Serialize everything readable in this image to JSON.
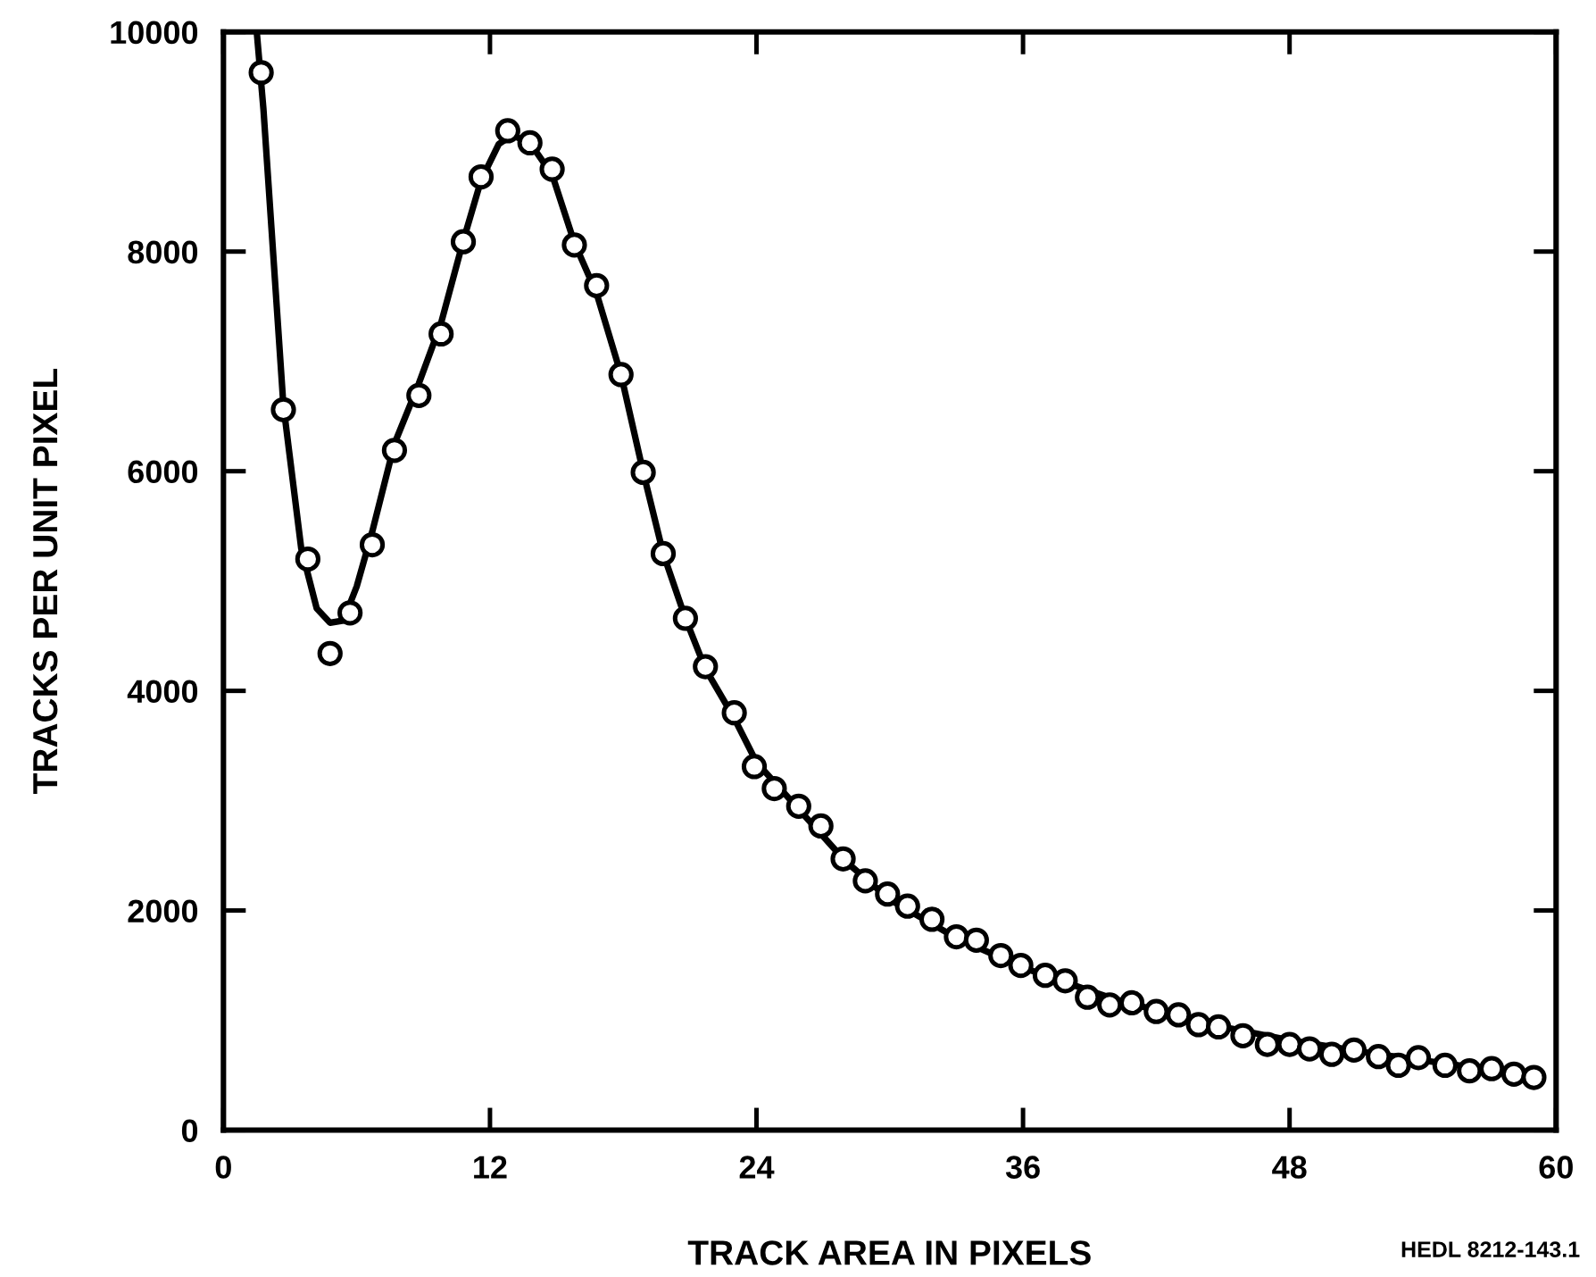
{
  "chart_data": {
    "type": "scatter",
    "xlabel": "TRACK AREA IN PIXELS",
    "ylabel": "TRACKS PER UNIT PIXEL",
    "annotations": [
      "HEDL 8212-143.1"
    ],
    "xlim": [
      0,
      60
    ],
    "ylim": [
      0,
      10000
    ],
    "xticks": [
      0,
      12,
      24,
      36,
      48,
      60
    ],
    "yticks": [
      0,
      2000,
      4000,
      6000,
      8000,
      10000
    ],
    "grid": false,
    "legend": false,
    "series": [
      {
        "color": "#000000",
        "marker": "circle",
        "x": [
          1.7,
          2.7,
          3.8,
          4.8,
          5.7,
          6.7,
          7.7,
          8.8,
          9.8,
          10.8,
          11.6,
          12.8,
          13.8,
          14.8,
          15.8,
          16.8,
          17.9,
          18.9,
          19.8,
          20.8,
          21.7,
          23.0,
          23.9,
          24.8,
          25.9,
          26.9,
          27.9,
          28.9,
          29.9,
          30.8,
          31.9,
          33.0,
          33.9,
          35.0,
          35.9,
          37.0,
          37.9,
          38.9,
          39.9,
          40.9,
          42.0,
          43.0,
          43.9,
          44.8,
          45.9,
          47.0,
          48.0,
          48.9,
          49.9,
          50.9,
          52.0,
          52.9,
          53.8,
          55.0,
          56.1,
          57.1,
          58.1,
          59.0
        ],
        "values": [
          9630,
          6560,
          5200,
          4340,
          4710,
          5330,
          6190,
          6690,
          7250,
          8090,
          8680,
          9100,
          8990,
          8750,
          8060,
          7690,
          6880,
          5990,
          5250,
          4660,
          4220,
          3800,
          3310,
          3110,
          2950,
          2770,
          2470,
          2270,
          2150,
          2040,
          1920,
          1760,
          1730,
          1590,
          1500,
          1410,
          1360,
          1210,
          1140,
          1160,
          1080,
          1050,
          960,
          940,
          860,
          780,
          780,
          740,
          690,
          730,
          670,
          590,
          660,
          590,
          540,
          560,
          510,
          480
        ]
      },
      {
        "type": "line",
        "color": "#000000",
        "marker": "none",
        "line_style": "solid",
        "x": [
          1.5,
          1.8,
          2.7,
          3.5,
          4.2,
          4.8,
          5.4,
          6.0,
          6.7,
          7.7,
          8.8,
          9.8,
          10.8,
          11.6,
          12.4,
          13.0,
          13.8,
          14.8,
          15.8,
          16.8,
          17.9,
          18.9,
          19.8,
          20.8,
          21.7,
          23.0,
          24.0,
          26.0,
          28.0,
          30.0,
          33.0,
          36.0,
          40.0,
          44.0,
          48.0,
          52.0,
          56.0,
          59.0
        ],
        "values": [
          10000,
          9300,
          6600,
          5300,
          4750,
          4620,
          4640,
          4950,
          5450,
          6250,
          6800,
          7350,
          8100,
          8650,
          8980,
          9060,
          8990,
          8700,
          8080,
          7620,
          6880,
          5990,
          5250,
          4660,
          4200,
          3750,
          3350,
          2900,
          2450,
          2100,
          1750,
          1480,
          1200,
          980,
          820,
          690,
          580,
          510
        ]
      }
    ]
  }
}
